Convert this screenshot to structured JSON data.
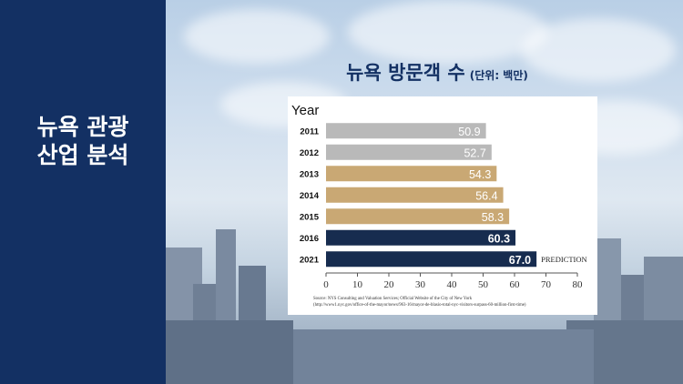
{
  "sidebar": {
    "title_line1": "뉴욕 관광",
    "title_line2": "산업 분석"
  },
  "colors": {
    "sidebar": "#133063",
    "gray": "#b9b9b9",
    "gold": "#c9a874",
    "navy": "#172c4f"
  },
  "chart_data": {
    "type": "bar",
    "orientation": "horizontal",
    "title": "뉴욕 방문객 수",
    "subtitle": "(단위: 백만)",
    "ylabel": "Year",
    "categories": [
      "2011",
      "2012",
      "2013",
      "2014",
      "2015",
      "2016",
      "2021"
    ],
    "values": [
      50.9,
      52.7,
      54.3,
      56.4,
      58.3,
      60.3,
      67.0
    ],
    "value_labels": [
      "50.9",
      "52.7",
      "54.3",
      "56.4",
      "58.3",
      "60.3",
      "67.0"
    ],
    "bar_colors": [
      "#b9b9b9",
      "#b9b9b9",
      "#c9a874",
      "#c9a874",
      "#c9a874",
      "#172c4f",
      "#172c4f"
    ],
    "xlim": [
      0,
      80
    ],
    "xticks": [
      "0",
      "10",
      "20",
      "30",
      "40",
      "50",
      "60",
      "70",
      "80"
    ],
    "annotation": "PREDICTION",
    "grid": false,
    "source_line1": "Source: NYS Consulting and Valuation Services; Official Website of the City of New York",
    "source_line2": "(http://www1.nyc.gov/office-of-the-mayor/news/963-16/mayor-de-blasio-total-nyc-visitors-surpass-60-million-first-time)"
  }
}
